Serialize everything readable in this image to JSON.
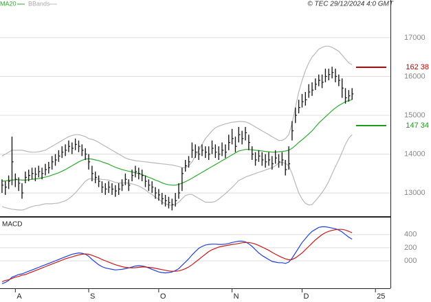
{
  "chart_data": [
    {
      "type": "ohlc",
      "credit": "© TEC 29/12/2024 4:0 GMT",
      "color": "#1a1a1a",
      "high": [
        13350,
        13300,
        13450,
        14450,
        13500,
        13400,
        13250,
        13550,
        13600,
        13650,
        13650,
        13700,
        13650,
        13750,
        13800,
        13950,
        14000,
        14100,
        14200,
        14250,
        14350,
        14300,
        14400,
        14350,
        14250,
        14150,
        14000,
        13700,
        13550,
        13450,
        13300,
        13250,
        13300,
        13250,
        13200,
        13250,
        13350,
        13500,
        13350,
        13600,
        13700,
        13650,
        13600,
        13450,
        13350,
        13300,
        13150,
        13100,
        13000,
        12950,
        12900,
        12850,
        13000,
        13250,
        13650,
        13850,
        13950,
        14300,
        14250,
        14200,
        14250,
        14200,
        14200,
        14350,
        14250,
        14200,
        14300,
        14250,
        14500,
        14650,
        14450,
        14700,
        14600,
        14700,
        14500,
        14200,
        14050,
        14100,
        14050,
        14000,
        14050,
        13950,
        14100,
        14000,
        14050,
        13850,
        14200,
        14850,
        15200,
        15400,
        15550,
        15600,
        15800,
        15850,
        15950,
        16050,
        16050,
        16200,
        16200,
        16250,
        16200,
        16050,
        15950,
        15700,
        15650,
        15700
      ],
      "low": [
        13000,
        12950,
        13100,
        13200,
        13150,
        13050,
        12850,
        13250,
        13300,
        13350,
        13300,
        13400,
        13350,
        13450,
        13500,
        13600,
        13700,
        13800,
        13900,
        13950,
        14050,
        14000,
        14100,
        14050,
        13950,
        13850,
        13600,
        13300,
        13250,
        13150,
        13000,
        12950,
        13000,
        12950,
        12900,
        12950,
        13050,
        13200,
        13050,
        13300,
        13400,
        13350,
        13300,
        13150,
        13050,
        13000,
        12850,
        12800,
        12700,
        12650,
        12600,
        12550,
        12650,
        12850,
        13050,
        13550,
        13650,
        13900,
        13900,
        13850,
        13950,
        13900,
        13850,
        14000,
        13900,
        13850,
        13950,
        13900,
        14100,
        14250,
        14050,
        14300,
        14250,
        14350,
        14100,
        13850,
        13700,
        13800,
        13700,
        13650,
        13700,
        13600,
        13750,
        13650,
        13700,
        13450,
        13600,
        14350,
        14800,
        15050,
        15200,
        15250,
        15450,
        15500,
        15650,
        15750,
        15700,
        15850,
        15900,
        15950,
        15850,
        15750,
        15450,
        15300,
        15350,
        15400
      ],
      "close": [
        13200,
        13150,
        13300,
        13800,
        13350,
        13250,
        13000,
        13400,
        13450,
        13500,
        13480,
        13550,
        13500,
        13600,
        13650,
        13800,
        13850,
        13950,
        14050,
        14100,
        14200,
        14150,
        14250,
        14200,
        14100,
        14000,
        13800,
        13500,
        13400,
        13300,
        13150,
        13100,
        13150,
        13100,
        13050,
        13100,
        13200,
        13350,
        13200,
        13450,
        13550,
        13500,
        13450,
        13300,
        13200,
        13150,
        13000,
        12950,
        12850,
        12800,
        12750,
        12700,
        12800,
        13000,
        13500,
        13700,
        13800,
        14100,
        14050,
        14000,
        14100,
        14050,
        14000,
        14150,
        14050,
        14000,
        14100,
        14050,
        14300,
        14400,
        14200,
        14500,
        14400,
        14550,
        14300,
        14000,
        13850,
        13950,
        13850,
        13800,
        13850,
        13750,
        13900,
        13800,
        13850,
        13600,
        13750,
        14600,
        15000,
        15200,
        15350,
        15400,
        15600,
        15650,
        15800,
        15900,
        15850,
        16000,
        16050,
        16100,
        16000,
        15900,
        15700,
        15450,
        15500,
        15550
      ],
      "series": [
        {
          "name": "MA20",
          "color": "#2eaa2e",
          "values": [
            13300,
            13310,
            13320,
            13330,
            13340,
            13340,
            13330,
            13330,
            13340,
            13350,
            13360,
            13370,
            13390,
            13410,
            13430,
            13460,
            13490,
            13520,
            13560,
            13600,
            13650,
            13700,
            13750,
            13800,
            13840,
            13870,
            13880,
            13870,
            13850,
            13830,
            13800,
            13770,
            13740,
            13700,
            13660,
            13630,
            13600,
            13580,
            13560,
            13540,
            13520,
            13500,
            13470,
            13440,
            13400,
            13370,
            13330,
            13300,
            13260,
            13230,
            13210,
            13200,
            13200,
            13220,
            13250,
            13290,
            13330,
            13380,
            13430,
            13480,
            13530,
            13580,
            13630,
            13680,
            13730,
            13780,
            13830,
            13880,
            13930,
            13980,
            14030,
            14080,
            14100,
            14120,
            14120,
            14110,
            14100,
            14090,
            14080,
            14070,
            14060,
            14050,
            14050,
            14060,
            14070,
            14080,
            14100,
            14150,
            14220,
            14300,
            14370,
            14440,
            14520,
            14600,
            14700,
            14800,
            14880,
            14960,
            15040,
            15120,
            15190,
            15250,
            15300,
            15350,
            15380,
            15400
          ]
        },
        {
          "name": "BBands",
          "color": "#b8b8b8",
          "upper": [
            13950,
            14000,
            14050,
            14100,
            14100,
            14100,
            14100,
            14080,
            14060,
            14050,
            14050,
            14060,
            14080,
            14100,
            14150,
            14200,
            14250,
            14300,
            14350,
            14400,
            14450,
            14480,
            14500,
            14500,
            14480,
            14450,
            14400,
            14380,
            14350,
            14300,
            14250,
            14200,
            14150,
            14100,
            14050,
            14000,
            13950,
            13900,
            13870,
            13850,
            13830,
            13820,
            13810,
            13800,
            13790,
            13780,
            13770,
            13760,
            13750,
            13740,
            13730,
            13720,
            13700,
            13680,
            13650,
            13650,
            13700,
            13800,
            13950,
            14100,
            14250,
            14400,
            14500,
            14600,
            14680,
            14720,
            14750,
            14780,
            14800,
            14820,
            14830,
            14840,
            14840,
            14830,
            14800,
            14750,
            14700,
            14650,
            14600,
            14550,
            14500,
            14450,
            14400,
            14350,
            14350,
            14400,
            14500,
            14800,
            15200,
            15600,
            15900,
            16150,
            16350,
            16500,
            16600,
            16700,
            16750,
            16780,
            16780,
            16750,
            16700,
            16650,
            16550,
            16450,
            16350,
            16300
          ],
          "lower": [
            12650,
            12620,
            12600,
            12580,
            12570,
            12560,
            12560,
            12580,
            12620,
            12650,
            12670,
            12680,
            12700,
            12720,
            12720,
            12720,
            12730,
            12740,
            12770,
            12800,
            12850,
            12920,
            13000,
            13100,
            13200,
            13300,
            13360,
            13360,
            13350,
            13360,
            13350,
            13340,
            13330,
            13300,
            13270,
            13260,
            13250,
            13260,
            13250,
            13230,
            13210,
            13180,
            13130,
            13080,
            13010,
            12960,
            12890,
            12840,
            12770,
            12720,
            12690,
            12680,
            12700,
            12760,
            12850,
            12930,
            12960,
            12960,
            12910,
            12860,
            12810,
            12760,
            12760,
            12760,
            12780,
            12840,
            12910,
            12980,
            13060,
            13140,
            13230,
            13320,
            13360,
            13410,
            13440,
            13470,
            13500,
            13530,
            13560,
            13590,
            13620,
            13650,
            13700,
            13770,
            13790,
            13760,
            13700,
            13500,
            13240,
            13000,
            12840,
            12730,
            12690,
            12700,
            12800,
            12900,
            13010,
            13140,
            13300,
            13490,
            13680,
            13850,
            14050,
            14250,
            14410,
            14500
          ]
        }
      ],
      "annotations": [
        {
          "value": 16238,
          "label": "162 38",
          "color": "#c00000"
        },
        {
          "value": 14734,
          "label": "147 34",
          "color": "#1a9a1a"
        }
      ],
      "ylim": [
        12400,
        17970
      ],
      "yticks": [
        13000,
        14000,
        15000,
        16000,
        17000
      ],
      "xlim": [
        -0.6,
        116.5
      ],
      "xticks": [
        {
          "value": 4,
          "label": "A"
        },
        {
          "value": 26,
          "label": "S"
        },
        {
          "value": 47,
          "label": "O"
        },
        {
          "value": 69,
          "label": "N"
        },
        {
          "value": 90,
          "label": "D"
        },
        {
          "value": 112,
          "label": "25"
        }
      ],
      "grid": true
    },
    {
      "type": "line",
      "title": "MACD",
      "series": [
        {
          "color": "#1f3fd6",
          "values": [
            -350,
            -330,
            -300,
            -250,
            -230,
            -210,
            -200,
            -180,
            -160,
            -140,
            -120,
            -100,
            -80,
            -60,
            -40,
            -20,
            0,
            20,
            40,
            60,
            80,
            100,
            110,
            120,
            115,
            100,
            70,
            20,
            -20,
            -60,
            -90,
            -110,
            -120,
            -130,
            -140,
            -135,
            -130,
            -120,
            -110,
            -95,
            -80,
            -75,
            -80,
            -90,
            -110,
            -130,
            -150,
            -170,
            -180,
            -185,
            -180,
            -170,
            -150,
            -120,
            -70,
            -20,
            30,
            90,
            140,
            190,
            220,
            240,
            250,
            255,
            255,
            250,
            250,
            255,
            265,
            280,
            290,
            300,
            300,
            290,
            260,
            220,
            170,
            120,
            80,
            50,
            20,
            -10,
            -20,
            -30,
            -30,
            -40,
            -20,
            40,
            120,
            200,
            280,
            340,
            400,
            450,
            480,
            510,
            520,
            520,
            510,
            500,
            490,
            470,
            440,
            400,
            360,
            330
          ]
        },
        {
          "color": "#c81818",
          "values": [
            -320,
            -300,
            -290,
            -270,
            -250,
            -240,
            -220,
            -210,
            -190,
            -170,
            -150,
            -130,
            -110,
            -90,
            -70,
            -50,
            -30,
            -10,
            10,
            30,
            45,
            60,
            75,
            90,
            100,
            105,
            100,
            85,
            65,
            45,
            20,
            0,
            -20,
            -40,
            -60,
            -75,
            -90,
            -100,
            -105,
            -108,
            -105,
            -100,
            -95,
            -95,
            -100,
            -105,
            -115,
            -125,
            -135,
            -145,
            -155,
            -160,
            -160,
            -155,
            -140,
            -120,
            -95,
            -60,
            -20,
            20,
            60,
            100,
            140,
            170,
            190,
            210,
            220,
            230,
            240,
            250,
            255,
            265,
            275,
            280,
            280,
            270,
            255,
            235,
            210,
            185,
            160,
            130,
            100,
            75,
            50,
            30,
            15,
            20,
            45,
            80,
            120,
            170,
            220,
            270,
            320,
            360,
            400,
            430,
            450,
            465,
            475,
            480,
            480,
            470,
            450,
            430
          ]
        }
      ],
      "ylim": [
        -420,
        650
      ],
      "yticks": [
        400,
        200,
        {
          "value": 0,
          "label": "000"
        }
      ],
      "grid": true
    }
  ]
}
